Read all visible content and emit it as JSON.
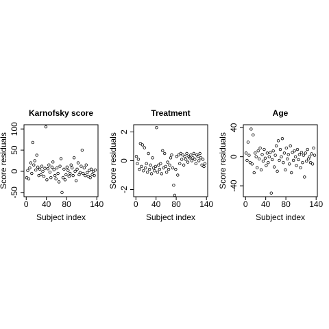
{
  "chart_data": [
    {
      "type": "scatter",
      "title": "Karnofsky score",
      "xlabel": "Subject index",
      "ylabel": "Score residuals",
      "x": [
        1,
        3,
        5,
        7,
        9,
        11,
        13,
        15,
        17,
        19,
        21,
        23,
        25,
        27,
        29,
        31,
        33,
        35,
        37,
        39,
        41,
        43,
        45,
        47,
        49,
        51,
        53,
        55,
        57,
        59,
        61,
        63,
        65,
        67,
        69,
        71,
        73,
        75,
        77,
        79,
        81,
        83,
        85,
        87,
        89,
        91,
        93,
        95,
        97,
        99,
        101,
        103,
        105,
        107,
        109,
        111,
        113,
        115,
        117,
        119,
        121,
        123,
        125,
        127,
        129,
        131,
        133,
        135,
        137
      ],
      "y": [
        -15,
        2,
        -18,
        8,
        20,
        -5,
        68,
        15,
        25,
        3,
        38,
        10,
        -10,
        5,
        -8,
        12,
        0,
        -12,
        7,
        105,
        -20,
        6,
        15,
        -2,
        -15,
        10,
        22,
        4,
        -10,
        -18,
        8,
        -5,
        -25,
        12,
        30,
        -50,
        -15,
        5,
        -20,
        -8,
        10,
        2,
        -12,
        -5,
        15,
        8,
        -10,
        32,
        0,
        -22,
        5,
        20,
        -8,
        -3,
        12,
        50,
        -5,
        8,
        -10,
        15,
        -3,
        -12,
        2,
        -15,
        5,
        -8,
        0,
        -10,
        3
      ],
      "xlim": [
        -4.44,
        142.44
      ],
      "ylim": [
        -60,
        110
      ],
      "xticks": [
        0,
        40,
        80,
        140
      ],
      "yticks": [
        -50,
        0,
        50,
        100
      ]
    },
    {
      "type": "scatter",
      "title": "Treatment",
      "xlabel": "Subject index",
      "ylabel": "Score residuals",
      "x": [
        1,
        3,
        5,
        7,
        9,
        11,
        13,
        15,
        17,
        19,
        21,
        23,
        25,
        27,
        29,
        31,
        33,
        35,
        37,
        39,
        41,
        43,
        45,
        47,
        49,
        51,
        53,
        55,
        57,
        59,
        61,
        63,
        65,
        67,
        69,
        71,
        73,
        75,
        77,
        79,
        81,
        83,
        85,
        87,
        89,
        91,
        93,
        95,
        97,
        99,
        101,
        103,
        105,
        107,
        109,
        111,
        113,
        115,
        117,
        119,
        121,
        123,
        125,
        127,
        129,
        131,
        133,
        135,
        137
      ],
      "y": [
        0.3,
        -0.2,
        0.1,
        -0.6,
        1.2,
        -0.4,
        1.1,
        -0.7,
        0.9,
        -0.5,
        -0.2,
        -0.8,
        0.5,
        -0.6,
        -0.3,
        -0.9,
        0.2,
        -0.5,
        -0.7,
        -0.4,
        2.3,
        -0.8,
        -0.3,
        -0.6,
        -0.2,
        -0.9,
        0.7,
        -0.5,
        0.5,
        -0.4,
        -0.8,
        -0.1,
        -0.6,
        -0.3,
        0.2,
        0.4,
        -0.5,
        -1.7,
        -2.4,
        -0.6,
        0.3,
        -1.0,
        0.4,
        -0.2,
        0.5,
        0.1,
        0.4,
        -0.3,
        0.3,
        0.1,
        0.5,
        -0.1,
        0.3,
        0.2,
        0.4,
        0.0,
        0.2,
        0.5,
        0.1,
        -0.2,
        0.4,
        0.3,
        0.0,
        0.5,
        0.2,
        -0.3,
        0.1,
        -0.4,
        -0.2
      ],
      "xlim": [
        -4.44,
        142.44
      ],
      "ylim": [
        -2.5,
        2.5
      ],
      "xticks": [
        0,
        40,
        80,
        140
      ],
      "yticks": [
        -2,
        0,
        2
      ]
    },
    {
      "type": "scatter",
      "title": "Age",
      "xlabel": "Subject index",
      "ylabel": "Score residuals",
      "x": [
        1,
        3,
        5,
        7,
        9,
        11,
        13,
        15,
        17,
        19,
        21,
        23,
        25,
        27,
        29,
        31,
        33,
        35,
        37,
        39,
        41,
        43,
        45,
        47,
        49,
        51,
        53,
        55,
        57,
        59,
        61,
        63,
        65,
        67,
        69,
        71,
        73,
        75,
        77,
        79,
        81,
        83,
        85,
        87,
        89,
        91,
        93,
        95,
        97,
        99,
        101,
        103,
        105,
        107,
        109,
        111,
        113,
        115,
        117,
        119,
        121,
        123,
        125,
        127,
        129,
        131,
        133,
        135,
        137
      ],
      "y": [
        5,
        -5,
        20,
        2,
        -8,
        38,
        -10,
        30,
        -22,
        5,
        0,
        -15,
        8,
        -3,
        12,
        -18,
        3,
        -6,
        10,
        -2,
        -12,
        5,
        -8,
        0,
        6,
        -50,
        -4,
        8,
        -14,
        2,
        15,
        -20,
        22,
        -5,
        10,
        0,
        25,
        -8,
        5,
        -18,
        12,
        -3,
        3,
        -10,
        15,
        -22,
        6,
        -5,
        8,
        0,
        -12,
        10,
        -4,
        3,
        -15,
        6,
        -8,
        2,
        -28,
        5,
        -6,
        10,
        -3,
        0,
        -8,
        4,
        -10,
        12,
        2
      ],
      "xlim": [
        -4.44,
        142.44
      ],
      "ylim": [
        -55,
        44
      ],
      "xticks": [
        0,
        40,
        80,
        140
      ],
      "yticks": [
        -40,
        0,
        40
      ]
    }
  ]
}
